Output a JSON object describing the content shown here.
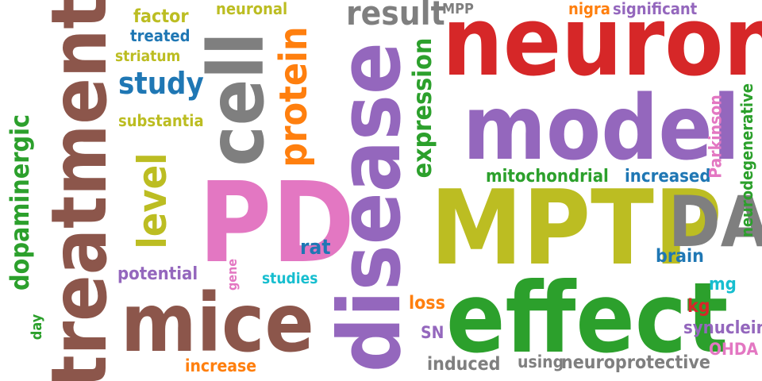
{
  "palette": {
    "brown": "#8c564b",
    "red": "#d62728",
    "purple": "#9467bd",
    "olive": "#bcbd22",
    "green": "#2ca02c",
    "gray": "#7f7f7f",
    "pink": "#e377c2",
    "blue": "#1f77b4",
    "orange": "#ff7f0e",
    "cyan": "#17becf"
  },
  "words": [
    {
      "text": "neuron",
      "color": "red"
    },
    {
      "text": "MPTP",
      "color": "olive"
    },
    {
      "text": "effect",
      "color": "green"
    },
    {
      "text": "model",
      "color": "purple"
    },
    {
      "text": "disease",
      "color": "purple"
    },
    {
      "text": "treatment",
      "color": "brown"
    },
    {
      "text": "cell",
      "color": "gray"
    },
    {
      "text": "PD",
      "color": "pink"
    },
    {
      "text": "mice",
      "color": "brown"
    },
    {
      "text": "DA",
      "color": "gray"
    },
    {
      "text": "level",
      "color": "olive"
    },
    {
      "text": "protein",
      "color": "orange"
    },
    {
      "text": "result",
      "color": "gray"
    },
    {
      "text": "expression",
      "color": "green"
    },
    {
      "text": "dopaminergic",
      "color": "green"
    },
    {
      "text": "study",
      "color": "blue"
    },
    {
      "text": "factor",
      "color": "olive"
    },
    {
      "text": "treated",
      "color": "blue"
    },
    {
      "text": "neuronal",
      "color": "olive"
    },
    {
      "text": "striatum",
      "color": "olive"
    },
    {
      "text": "substantia",
      "color": "olive"
    },
    {
      "text": "MPP",
      "color": "gray"
    },
    {
      "text": "nigra",
      "color": "orange"
    },
    {
      "text": "significant",
      "color": "purple"
    },
    {
      "text": "mitochondrial",
      "color": "green"
    },
    {
      "text": "increased",
      "color": "blue"
    },
    {
      "text": "Parkinson",
      "color": "pink"
    },
    {
      "text": "neurodegenerative",
      "color": "green"
    },
    {
      "text": "brain",
      "color": "blue"
    },
    {
      "text": "rat",
      "color": "blue"
    },
    {
      "text": "studies",
      "color": "cyan"
    },
    {
      "text": "potential",
      "color": "purple"
    },
    {
      "text": "gene",
      "color": "pink"
    },
    {
      "text": "loss",
      "color": "orange"
    },
    {
      "text": "mg",
      "color": "cyan"
    },
    {
      "text": "kg",
      "color": "red"
    },
    {
      "text": "synuclein",
      "color": "purple"
    },
    {
      "text": "OHDA",
      "color": "pink"
    },
    {
      "text": "SN",
      "color": "purple"
    },
    {
      "text": "induced",
      "color": "gray"
    },
    {
      "text": "using",
      "color": "gray"
    },
    {
      "text": "neuroprotective",
      "color": "gray"
    },
    {
      "text": "increase",
      "color": "orange"
    },
    {
      "text": "day",
      "color": "green"
    }
  ]
}
